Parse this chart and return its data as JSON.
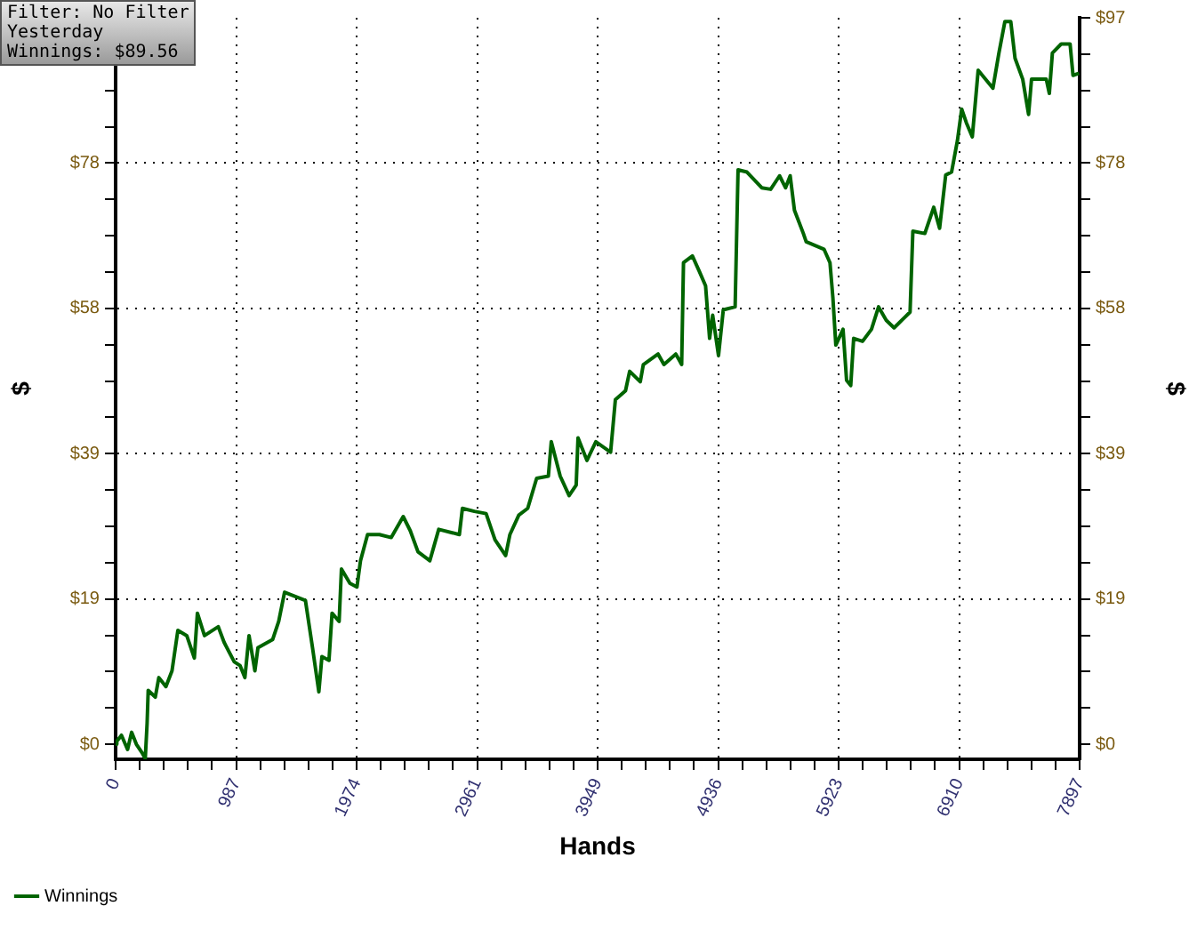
{
  "chart_data": {
    "type": "line",
    "xlabel": "Hands",
    "ylabel": "$",
    "y2label": "$",
    "annotations": [
      "Filter: No Filter",
      "Yesterday",
      "Winnings: $89.56"
    ],
    "legend": "bottom left",
    "grid": true,
    "line_style": "solid",
    "marker": "none",
    "xlim": [
      0,
      7897
    ],
    "xticks": [
      0,
      {
        "value": 197.425,
        "label": null
      },
      {
        "value": 394.85,
        "label": null
      },
      {
        "value": 592.275,
        "label": null
      },
      {
        "value": 789.7,
        "label": null
      },
      {
        "value": 987.125,
        "label": "987"
      },
      {
        "value": 1184.55,
        "label": null
      },
      {
        "value": 1381.975,
        "label": null
      },
      {
        "value": 1579.4,
        "label": null
      },
      {
        "value": 1776.825,
        "label": null
      },
      {
        "value": 1974.25,
        "label": "1974"
      },
      {
        "value": 2171.675,
        "label": null
      },
      {
        "value": 2369.1,
        "label": null
      },
      {
        "value": 2566.525,
        "label": null
      },
      {
        "value": 2763.95,
        "label": null
      },
      {
        "value": 2961.375,
        "label": "2961"
      },
      {
        "value": 3158.8,
        "label": null
      },
      {
        "value": 3356.225,
        "label": null
      },
      {
        "value": 3553.65,
        "label": null
      },
      {
        "value": 3751.075,
        "label": null
      },
      {
        "value": 3948.5,
        "label": "3949"
      },
      {
        "value": 4145.925,
        "label": null
      },
      {
        "value": 4343.35,
        "label": null
      },
      {
        "value": 4540.775,
        "label": null
      },
      {
        "value": 4738.2,
        "label": null
      },
      {
        "value": 4935.625,
        "label": "4936"
      },
      {
        "value": 5133.05,
        "label": null
      },
      {
        "value": 5330.475,
        "label": null
      },
      {
        "value": 5527.9,
        "label": null
      },
      {
        "value": 5725.325,
        "label": null
      },
      {
        "value": 5922.75,
        "label": "5923"
      },
      {
        "value": 6120.175,
        "label": null
      },
      {
        "value": 6317.6,
        "label": null
      },
      {
        "value": 6515.025,
        "label": null
      },
      {
        "value": 6712.45,
        "label": null
      },
      {
        "value": 6909.875,
        "label": "6910"
      },
      {
        "value": 7107.3,
        "label": null
      },
      {
        "value": 7304.725,
        "label": null
      },
      {
        "value": 7502.15,
        "label": null
      },
      {
        "value": 7699.575,
        "label": null
      },
      7897
    ],
    "ylim": [
      -2,
      97
    ],
    "yticks": [
      {
        "value": 0,
        "label": "$0"
      },
      {
        "value": 4.85,
        "label": null
      },
      {
        "value": 9.7,
        "label": null
      },
      {
        "value": 14.55,
        "label": null
      },
      {
        "value": 19.4,
        "label": "$19"
      },
      {
        "value": 24.25,
        "label": null
      },
      {
        "value": 29.1,
        "label": null
      },
      {
        "value": 33.95,
        "label": null
      },
      {
        "value": 38.8,
        "label": "$39"
      },
      {
        "value": 43.65,
        "label": null
      },
      {
        "value": 48.5,
        "label": null
      },
      {
        "value": 53.35,
        "label": null
      },
      {
        "value": 58.2,
        "label": "$58"
      },
      {
        "value": 63.05,
        "label": null
      },
      {
        "value": 67.9,
        "label": null
      },
      {
        "value": 72.75,
        "label": null
      },
      {
        "value": 77.6,
        "label": "$78"
      },
      {
        "value": 82.45,
        "label": null
      },
      {
        "value": 87.3,
        "label": null
      },
      {
        "value": 92.15,
        "label": null
      },
      {
        "value": 97,
        "label": null
      }
    ],
    "y2lim": [
      -2,
      97
    ],
    "y2ticks": [
      {
        "value": 0,
        "label": "$0"
      },
      {
        "value": 4.85,
        "label": null
      },
      {
        "value": 9.7,
        "label": null
      },
      {
        "value": 14.55,
        "label": null
      },
      {
        "value": 19.4,
        "label": "$19"
      },
      {
        "value": 24.25,
        "label": null
      },
      {
        "value": 29.1,
        "label": null
      },
      {
        "value": 33.95,
        "label": null
      },
      {
        "value": 38.8,
        "label": "$39"
      },
      {
        "value": 43.65,
        "label": null
      },
      {
        "value": 48.5,
        "label": null
      },
      {
        "value": 53.35,
        "label": null
      },
      {
        "value": 58.2,
        "label": "$58"
      },
      {
        "value": 63.05,
        "label": null
      },
      {
        "value": 67.9,
        "label": null
      },
      {
        "value": 72.75,
        "label": null
      },
      {
        "value": 77.6,
        "label": "$78"
      },
      {
        "value": 82.45,
        "label": null
      },
      {
        "value": 87.3,
        "label": null
      },
      {
        "value": 92.15,
        "label": null
      },
      {
        "value": 97,
        "label": "$97"
      }
    ],
    "series": [
      {
        "name": "Winnings",
        "color": "#006400",
        "x": [
          0,
          10,
          48,
          98,
          131,
          170,
          219,
          243,
          258,
          267,
          325,
          354,
          412,
          462,
          510,
          583,
          645,
          670,
          728,
          841,
          889,
          972,
          1020,
          1059,
          1093,
          1141,
          1166,
          1287,
          1336,
          1384,
          1555,
          1613,
          1665,
          1690,
          1748,
          1773,
          1831,
          1850,
          1919,
          1977,
          2006,
          2064,
          2161,
          2258,
          2356,
          2414,
          2477,
          2574,
          2647,
          2816,
          2841,
          2939,
          3035,
          3108,
          3195,
          3230,
          3303,
          3376,
          3449,
          3545,
          3569,
          3642,
          3715,
          3773,
          3788,
          3861,
          3934,
          4055,
          4094,
          4177,
          4211,
          4298,
          4323,
          4444,
          4492,
          4589,
          4637,
          4652,
          4725,
          4783,
          4833,
          4866,
          4891,
          4939,
          4978,
          5075,
          5099,
          5172,
          5293,
          5366,
          5439,
          5488,
          5526,
          5561,
          5634,
          5657,
          5803,
          5852,
          5876,
          5900,
          5959,
          5988,
          6022,
          6046,
          6119,
          6192,
          6250,
          6313,
          6377,
          6508,
          6531,
          6629,
          6702,
          6750,
          6800,
          6848,
          6896,
          6931,
          6969,
          7018,
          7066,
          7187,
          7236,
          7285,
          7333,
          7368,
          7431,
          7479,
          7503,
          7624,
          7649,
          7674,
          7746,
          7819,
          7843,
          7892
        ],
        "values": [
          0,
          0.4,
          1.2,
          -0.7,
          1.6,
          0,
          -1.2,
          -1.9,
          2.8,
          7.2,
          6.3,
          8.9,
          7.7,
          9.8,
          15.2,
          14.5,
          11.5,
          17.5,
          14.5,
          15.7,
          13.6,
          11.0,
          10.5,
          8.9,
          14.5,
          9.8,
          12.9,
          14.0,
          16.4,
          20.3,
          19.2,
          12.9,
          7.0,
          11.7,
          11.2,
          17.5,
          16.4,
          23.4,
          21.5,
          21.0,
          24.5,
          28.0,
          28.0,
          27.6,
          30.4,
          28.5,
          25.7,
          24.5,
          28.7,
          28.0,
          31.5,
          31.1,
          30.8,
          27.3,
          25.2,
          28.0,
          30.6,
          31.5,
          35.5,
          35.8,
          40.4,
          35.8,
          33.2,
          34.6,
          40.9,
          37.9,
          40.4,
          39.0,
          46.0,
          47.2,
          49.8,
          48.4,
          50.7,
          52.1,
          50.7,
          52.1,
          50.7,
          64.3,
          65.2,
          63.1,
          61.2,
          54.2,
          57.3,
          51.9,
          58.0,
          58.4,
          76.7,
          76.4,
          74.3,
          74.1,
          75.9,
          74.3,
          75.9,
          71.3,
          68.2,
          67.1,
          66.1,
          64.3,
          59.6,
          53.3,
          55.4,
          48.6,
          47.9,
          54.2,
          53.8,
          55.4,
          58.4,
          56.6,
          55.6,
          57.7,
          68.5,
          68.2,
          71.7,
          68.9,
          76.0,
          76.4,
          80.6,
          84.8,
          83.0,
          81.1,
          90.0,
          87.6,
          92.3,
          96.5,
          96.5,
          91.6,
          88.8,
          84.1,
          88.8,
          88.8,
          86.9,
          92.3,
          93.5,
          93.5,
          89.3,
          89.6
        ]
      }
    ]
  }
}
